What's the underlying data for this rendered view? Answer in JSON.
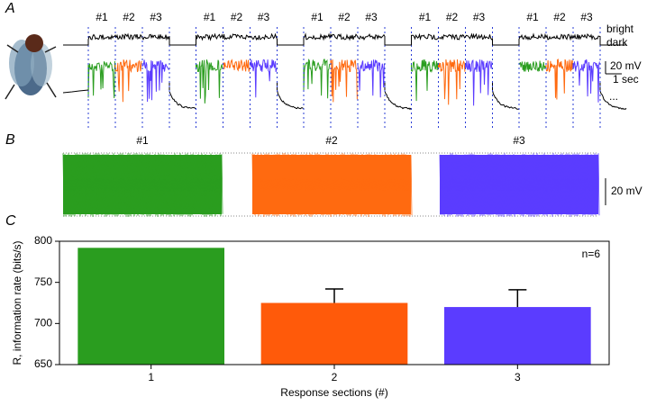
{
  "panels": {
    "a": {
      "label": "A",
      "section_labels": [
        "#1",
        "#2",
        "#3"
      ],
      "section_colors": [
        "#2a9d1f",
        "#ff6a10",
        "#5b3cff"
      ],
      "stim_labels": [
        "bright",
        "dark"
      ],
      "scale_v": "20 mV",
      "scale_t": "1 sec",
      "more": "..."
    },
    "b": {
      "label": "B",
      "section_labels": [
        "#1",
        "#2",
        "#3"
      ],
      "scale_v": "20 mV"
    },
    "c": {
      "label": "C"
    }
  },
  "chart_data": {
    "type": "bar",
    "categories": [
      "1",
      "2",
      "3"
    ],
    "values": [
      792,
      725,
      720
    ],
    "errors": [
      null,
      17,
      21
    ],
    "colors": [
      "#2a9d1f",
      "#ff5a0a",
      "#5b3cff"
    ],
    "ylabel": "R, information rate (bits/s)",
    "xlabel": "Response sections (#)",
    "annotation": "n=6",
    "ylim": [
      650,
      800
    ],
    "yticks": [
      650,
      700,
      750,
      800
    ]
  }
}
